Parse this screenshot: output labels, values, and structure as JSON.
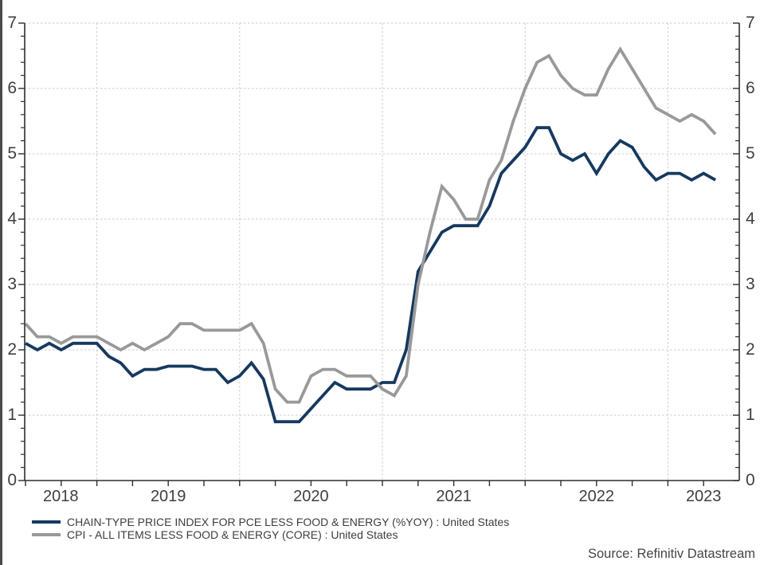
{
  "window": {
    "background": "#ffffff",
    "left_border_color": "#4a4a4a",
    "text_color": "#3f3f3f"
  },
  "chart_data": {
    "type": "line",
    "title": "",
    "frequency": "monthly",
    "x_start": "2018-07",
    "x_end": "2023-05",
    "x_tick_labels": [
      "2018",
      "2019",
      "2020",
      "2021",
      "2022",
      "2023"
    ],
    "ylim": [
      0,
      7
    ],
    "yticks": [
      0,
      1,
      2,
      3,
      4,
      5,
      6,
      7
    ],
    "y_minor_tick_step": 0.2,
    "x_minor_ticks": "quarterly",
    "grid": {
      "horizontal": "dashed line at each integer 1-7",
      "vertical": "dashed line at each January",
      "color": "#cbcbcb"
    },
    "axis_color": "#2e2e2e",
    "legend_position": "below-left",
    "months": [
      "2018-07",
      "2018-08",
      "2018-09",
      "2018-10",
      "2018-11",
      "2018-12",
      "2019-01",
      "2019-02",
      "2019-03",
      "2019-04",
      "2019-05",
      "2019-06",
      "2019-07",
      "2019-08",
      "2019-09",
      "2019-10",
      "2019-11",
      "2019-12",
      "2020-01",
      "2020-02",
      "2020-03",
      "2020-04",
      "2020-05",
      "2020-06",
      "2020-07",
      "2020-08",
      "2020-09",
      "2020-10",
      "2020-11",
      "2020-12",
      "2021-01",
      "2021-02",
      "2021-03",
      "2021-04",
      "2021-05",
      "2021-06",
      "2021-07",
      "2021-08",
      "2021-09",
      "2021-10",
      "2021-11",
      "2021-12",
      "2022-01",
      "2022-02",
      "2022-03",
      "2022-04",
      "2022-05",
      "2022-06",
      "2022-07",
      "2022-08",
      "2022-09",
      "2022-10",
      "2022-11",
      "2022-12",
      "2023-01",
      "2023-02",
      "2023-03",
      "2023-04",
      "2023-05"
    ],
    "series": [
      {
        "name": "CHAIN-TYPE PRICE INDEX FOR PCE LESS FOOD & ENERGY (%YOY) : United States",
        "color": "#16395f",
        "values": [
          2.1,
          2.0,
          2.1,
          2.0,
          2.1,
          2.1,
          2.1,
          1.9,
          1.8,
          1.6,
          1.7,
          1.7,
          1.75,
          1.75,
          1.75,
          1.7,
          1.7,
          1.5,
          1.6,
          1.8,
          1.55,
          0.9,
          0.9,
          0.9,
          1.1,
          1.3,
          1.5,
          1.4,
          1.4,
          1.4,
          1.5,
          1.5,
          2.0,
          3.2,
          3.5,
          3.8,
          3.9,
          3.9,
          3.9,
          4.2,
          4.7,
          4.9,
          5.1,
          5.4,
          5.4,
          5.0,
          4.9,
          5.0,
          4.7,
          5.0,
          5.2,
          5.1,
          4.8,
          4.6,
          4.7,
          4.7,
          4.6,
          4.7,
          4.6
        ]
      },
      {
        "name": "CPI - ALL ITEMS LESS FOOD & ENERGY (CORE) : United States",
        "color": "#999999",
        "values": [
          2.4,
          2.2,
          2.2,
          2.1,
          2.2,
          2.2,
          2.2,
          2.1,
          2.0,
          2.1,
          2.0,
          2.1,
          2.2,
          2.4,
          2.4,
          2.3,
          2.3,
          2.3,
          2.3,
          2.4,
          2.1,
          1.4,
          1.2,
          1.2,
          1.6,
          1.7,
          1.7,
          1.6,
          1.6,
          1.6,
          1.4,
          1.3,
          1.6,
          3.0,
          3.8,
          4.5,
          4.3,
          4.0,
          4.0,
          4.6,
          4.9,
          5.5,
          6.0,
          6.4,
          6.5,
          6.2,
          6.0,
          5.9,
          5.9,
          6.3,
          6.6,
          6.3,
          6.0,
          5.7,
          5.6,
          5.5,
          5.6,
          5.5,
          5.3
        ]
      }
    ],
    "source_note": "Source: Refinitiv Datastream"
  }
}
